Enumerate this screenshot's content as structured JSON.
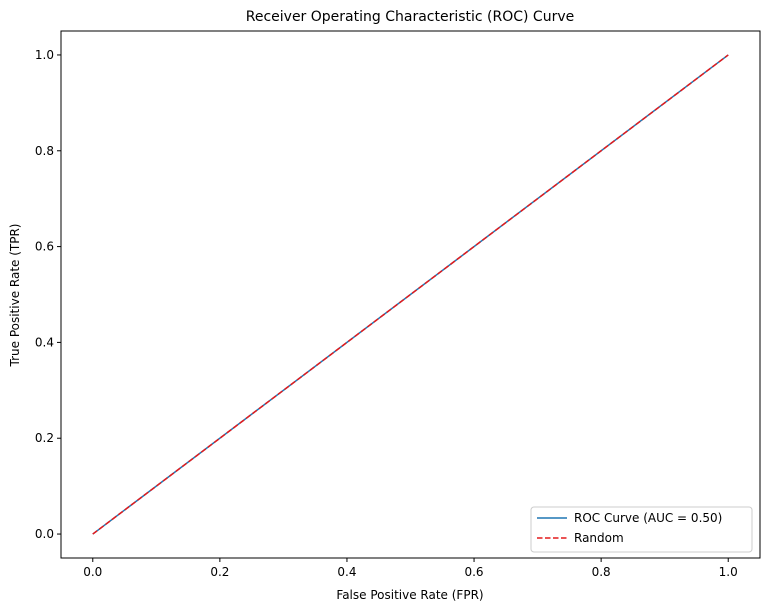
{
  "chart_data": {
    "type": "line",
    "title": "Receiver Operating Characteristic (ROC) Curve",
    "xlabel": "False Positive Rate (FPR)",
    "ylabel": "True Positive Rate (TPR)",
    "xlim": [
      -0.05,
      1.05
    ],
    "ylim": [
      -0.05,
      1.05
    ],
    "xticks": [
      0.0,
      0.2,
      0.4,
      0.6,
      0.8,
      1.0
    ],
    "xtick_labels": [
      "0.0",
      "0.2",
      "0.4",
      "0.6",
      "0.8",
      "1.0"
    ],
    "yticks": [
      0.0,
      0.2,
      0.4,
      0.6,
      0.8,
      1.0
    ],
    "ytick_labels": [
      "0.0",
      "0.2",
      "0.4",
      "0.6",
      "0.8",
      "1.0"
    ],
    "grid": false,
    "legend_position": "lower-right",
    "series": [
      {
        "name": "ROC Curve (AUC = 0.50)",
        "x": [
          0.0,
          1.0
        ],
        "y": [
          0.0,
          1.0
        ],
        "color": "#1f77b4",
        "style": "solid"
      },
      {
        "name": "Random",
        "x": [
          0.0,
          1.0
        ],
        "y": [
          0.0,
          1.0
        ],
        "color": "#e41a1c",
        "style": "dashed"
      }
    ]
  }
}
